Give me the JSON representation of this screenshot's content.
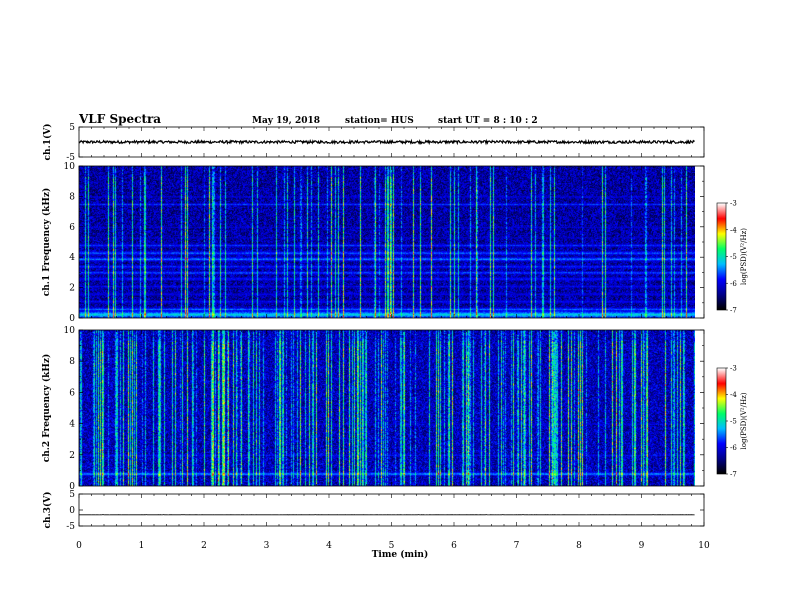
{
  "header": {
    "title": "VLF Spectra",
    "date": "May 19, 2018",
    "station": "station= HUS",
    "start": "start  UT =   8  : 10 : 2"
  },
  "chart_data": [
    {
      "type": "line",
      "name": "ch1-waveform",
      "ylabel": "ch.1(V)",
      "ylim": [
        -5,
        5
      ],
      "yticks": [
        5,
        -5
      ],
      "xlim": [
        0,
        10
      ],
      "x_end": 9.85,
      "level": 0,
      "noise_amplitude": 0.45,
      "color": "#000000"
    },
    {
      "type": "heatmap",
      "name": "ch1-spectrogram",
      "ylabel": "ch.1 Frequency (kHz)",
      "ylim": [
        0,
        10
      ],
      "yticks": [
        0,
        2,
        4,
        6,
        8,
        10
      ],
      "xlim": [
        0,
        10
      ],
      "x_end": 9.85,
      "background_log_psd": -6.3,
      "bands_khz": [
        {
          "f": 0.25,
          "w": 0.25,
          "level": -5.1
        },
        {
          "f": 0.6,
          "w": 0.15,
          "level": -5.5
        },
        {
          "f": 1.1,
          "w": 0.15,
          "level": -5.8
        },
        {
          "f": 1.6,
          "w": 0.15,
          "level": -5.9
        },
        {
          "f": 2.1,
          "w": 0.15,
          "level": -5.9
        },
        {
          "f": 2.6,
          "w": 0.15,
          "level": -5.7
        },
        {
          "f": 3.0,
          "w": 0.12,
          "level": -5.5
        },
        {
          "f": 3.4,
          "w": 0.12,
          "level": -5.6
        },
        {
          "f": 3.9,
          "w": 0.15,
          "level": -5.4
        },
        {
          "f": 4.3,
          "w": 0.15,
          "level": -5.5
        },
        {
          "f": 4.8,
          "w": 0.15,
          "level": -5.7
        },
        {
          "f": 5.3,
          "w": 0.1,
          "level": -6.0
        },
        {
          "f": 6.0,
          "w": 0.1,
          "level": -6.0
        },
        {
          "f": 7.5,
          "w": 0.12,
          "level": -5.7
        },
        {
          "f": 8.0,
          "w": 0.1,
          "level": -5.9
        }
      ],
      "sferic_density": 0.22,
      "colorbar": {
        "label": "log(PSD)(V²/Hz)",
        "ticks": [
          -3,
          -4,
          -5,
          -6,
          -7
        ],
        "range": [
          -7,
          -3
        ]
      }
    },
    {
      "type": "heatmap",
      "name": "ch2-spectrogram",
      "ylabel": "ch.2 Frequency (kHz)",
      "ylim": [
        0,
        10
      ],
      "yticks": [
        0,
        2,
        4,
        6,
        8,
        10
      ],
      "xlim": [
        0,
        10
      ],
      "x_end": 9.85,
      "background_log_psd": -6.2,
      "bands_khz": [
        {
          "f": 0.8,
          "w": 0.12,
          "level": -5.3
        },
        {
          "f": 2.0,
          "w": 0.1,
          "level": -5.8
        },
        {
          "f": 4.0,
          "w": 0.1,
          "level": -5.9
        }
      ],
      "sferic_density": 0.55,
      "colorbar": {
        "label": "log(PSD)(V²/Hz)",
        "ticks": [
          -3,
          -4,
          -5,
          -6,
          -7
        ],
        "range": [
          -7,
          -3
        ]
      }
    },
    {
      "type": "line",
      "name": "ch3-waveform",
      "ylabel": "ch.3(V)",
      "ylim": [
        -5,
        5
      ],
      "yticks": [
        5,
        0,
        -5
      ],
      "xlim": [
        0,
        10
      ],
      "x_end": 9.85,
      "level": -1.5,
      "noise_amplitude": 0.02,
      "color": "#000000"
    }
  ],
  "xaxis": {
    "label": "Time  (min)",
    "ticks": [
      0,
      1,
      2,
      3,
      4,
      5,
      6,
      7,
      8,
      9,
      10
    ]
  },
  "colormap": [
    "#000000",
    "#00008b",
    "#0000ff",
    "#00bfff",
    "#00ff66",
    "#ffff00",
    "#ff0000",
    "#ffffff"
  ]
}
